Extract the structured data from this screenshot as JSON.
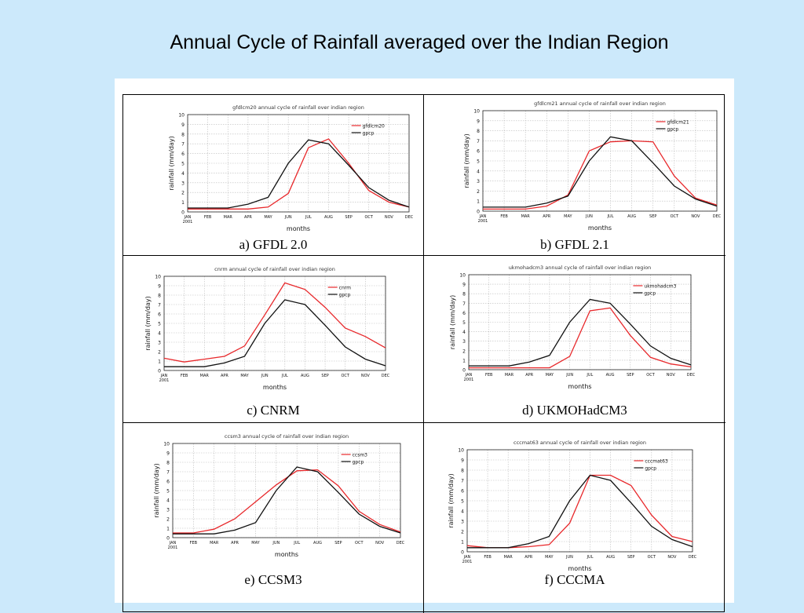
{
  "slide": {
    "title": "Annual Cycle of Rainfall averaged over the Indian Region"
  },
  "months": [
    "JAN\n2001",
    "FEB",
    "MAR",
    "APR",
    "MAY",
    "JUN",
    "JUL",
    "AUG",
    "SEP",
    "OCT",
    "NOV",
    "DEC"
  ],
  "colors": {
    "model": "#e8282b",
    "obs": "#111111"
  },
  "chart_data": [
    {
      "type": "line",
      "title": "gfdlcm20 annual cycle of rainfall over indian region",
      "caption": "a) GFDL 2.0",
      "xlabel": "months",
      "ylabel": "rainfall (mm/day)",
      "ylim": [
        0,
        10
      ],
      "legend_position": "top-right",
      "x": [
        "JAN 2001",
        "FEB",
        "MAR",
        "APR",
        "MAY",
        "JUN",
        "JUL",
        "AUG",
        "SEP",
        "OCT",
        "NOV",
        "DEC"
      ],
      "series": [
        {
          "name": "gfdlcm20",
          "values": [
            0.3,
            0.3,
            0.3,
            0.3,
            0.5,
            1.9,
            6.6,
            7.5,
            5.0,
            2.2,
            1.0,
            0.5
          ]
        },
        {
          "name": "gpcp",
          "values": [
            0.4,
            0.4,
            0.4,
            0.8,
            1.5,
            5.0,
            7.4,
            7.0,
            4.8,
            2.5,
            1.2,
            0.5
          ]
        }
      ]
    },
    {
      "type": "line",
      "title": "gfdlcm21 annual cycle of rainfall over indian region",
      "caption": "b) GFDL 2.1",
      "xlabel": "months",
      "ylabel": "rainfall (mm/day)",
      "ylim": [
        0,
        10
      ],
      "legend_position": "top-right",
      "x": [
        "JAN 2001",
        "FEB",
        "MAR",
        "APR",
        "MAY",
        "JUN",
        "JUL",
        "AUG",
        "SEP",
        "OCT",
        "NOV",
        "DEC"
      ],
      "series": [
        {
          "name": "gfdlcm21",
          "values": [
            0.2,
            0.2,
            0.2,
            0.5,
            1.6,
            6.0,
            6.9,
            7.0,
            6.9,
            3.5,
            1.3,
            0.6
          ]
        },
        {
          "name": "gpcp",
          "values": [
            0.4,
            0.4,
            0.4,
            0.8,
            1.5,
            5.0,
            7.4,
            7.0,
            4.8,
            2.5,
            1.2,
            0.5
          ]
        }
      ]
    },
    {
      "type": "line",
      "title": "cnrm annual cycle of rainfall over indian region",
      "caption": "c) CNRM",
      "xlabel": "months",
      "ylabel": "rainfall (mm/day)",
      "ylim": [
        0,
        10
      ],
      "legend_position": "top-right",
      "x": [
        "JAN 2001",
        "FEB",
        "MAR",
        "APR",
        "MAY",
        "JUN",
        "JUL",
        "AUG",
        "SEP",
        "OCT",
        "NOV",
        "DEC"
      ],
      "series": [
        {
          "name": "cnrm",
          "values": [
            1.3,
            0.9,
            1.2,
            1.5,
            2.6,
            5.9,
            9.3,
            8.6,
            6.7,
            4.5,
            3.6,
            2.4
          ]
        },
        {
          "name": "gpcp",
          "values": [
            0.4,
            0.4,
            0.4,
            0.8,
            1.5,
            5.0,
            7.5,
            7.0,
            4.8,
            2.5,
            1.2,
            0.5
          ]
        }
      ]
    },
    {
      "type": "line",
      "title": "ukmohadcm3 annual cycle of rainfall over indian region",
      "caption": "d) UKMOHadCM3",
      "xlabel": "months",
      "ylabel": "rainfall (mm/day)",
      "ylim": [
        0,
        10
      ],
      "legend_position": "top-right",
      "x": [
        "JAN 2001",
        "FEB",
        "MAR",
        "APR",
        "MAY",
        "JUN",
        "JUL",
        "AUG",
        "SEP",
        "OCT",
        "NOV",
        "DEC"
      ],
      "series": [
        {
          "name": "ukmohadcm3",
          "values": [
            0.2,
            0.2,
            0.2,
            0.2,
            0.2,
            1.4,
            6.2,
            6.5,
            3.6,
            1.3,
            0.6,
            0.3
          ]
        },
        {
          "name": "gpcp",
          "values": [
            0.4,
            0.4,
            0.4,
            0.8,
            1.5,
            5.0,
            7.4,
            7.0,
            4.8,
            2.5,
            1.2,
            0.5
          ]
        }
      ]
    },
    {
      "type": "line",
      "title": "ccsm3 annual cycle of rainfall over indian region",
      "caption": "e) CCSM3",
      "xlabel": "months",
      "ylabel": "rainfall (mm/day)",
      "ylim": [
        0,
        10
      ],
      "legend_position": "top-right",
      "x": [
        "JAN 2001",
        "FEB",
        "MAR",
        "APR",
        "MAY",
        "JUN",
        "JUL",
        "AUG",
        "SEP",
        "OCT",
        "NOV",
        "DEC"
      ],
      "series": [
        {
          "name": "ccsm3",
          "values": [
            0.5,
            0.5,
            0.9,
            2.0,
            3.8,
            5.6,
            7.1,
            7.2,
            5.5,
            2.8,
            1.4,
            0.6
          ]
        },
        {
          "name": "gpcp",
          "values": [
            0.4,
            0.4,
            0.4,
            0.8,
            1.6,
            5.0,
            7.5,
            7.0,
            4.8,
            2.5,
            1.2,
            0.5
          ]
        }
      ]
    },
    {
      "type": "line",
      "title": "cccmat63 annual cycle of rainfall over indian region",
      "caption": "f) CCCMA",
      "xlabel": "months",
      "ylabel": "rainfall (mm/day)",
      "ylim": [
        0,
        10
      ],
      "legend_position": "top-right",
      "x": [
        "JAN 2001",
        "FEB",
        "MAR",
        "APR",
        "MAY",
        "JUN",
        "JUL",
        "AUG",
        "SEP",
        "OCT",
        "NOV",
        "DEC"
      ],
      "series": [
        {
          "name": "cccmat63",
          "values": [
            0.6,
            0.4,
            0.4,
            0.5,
            0.7,
            2.8,
            7.5,
            7.5,
            6.5,
            3.6,
            1.5,
            1.0
          ]
        },
        {
          "name": "gpcp",
          "values": [
            0.4,
            0.4,
            0.4,
            0.8,
            1.5,
            5.0,
            7.5,
            7.0,
            4.8,
            2.5,
            1.2,
            0.5
          ]
        }
      ]
    }
  ]
}
